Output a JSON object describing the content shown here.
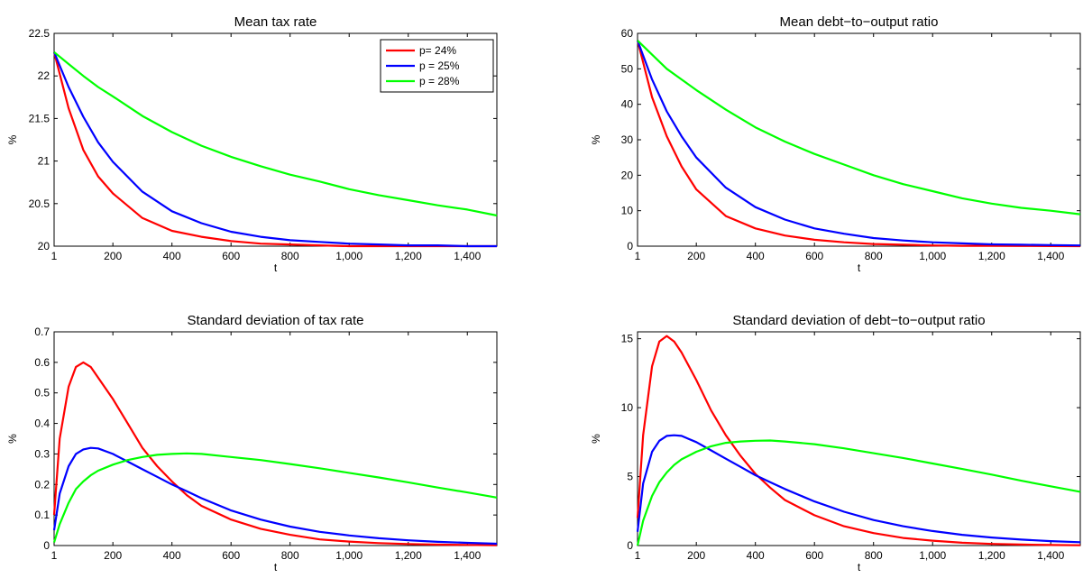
{
  "figure": {
    "background": "#ffffff",
    "series_colors": {
      "p24": "#ff0000",
      "p25": "#0000ff",
      "p28": "#00ff00"
    }
  },
  "chart_data": [
    {
      "type": "line",
      "title": "Mean tax rate",
      "xlabel": "t",
      "ylabel": "%",
      "xlim": [
        1,
        1500
      ],
      "ylim": [
        20,
        22.5
      ],
      "grid": false,
      "xticks": [
        1,
        200,
        400,
        600,
        800,
        1000,
        1200,
        1400
      ],
      "xtick_labels": [
        "1",
        "200",
        "400",
        "600",
        "800",
        "1,000",
        "1,200",
        "1,400"
      ],
      "yticks": [
        20,
        20.5,
        21,
        21.5,
        22,
        22.5
      ],
      "ytick_labels": [
        "20",
        "20.5",
        "21",
        "21.5",
        "22",
        "22.5"
      ],
      "legend": {
        "placement": "top-right",
        "entries": [
          "p=  24%",
          "p = 25%",
          "p = 28%"
        ]
      },
      "x": [
        1,
        50,
        100,
        150,
        200,
        300,
        400,
        500,
        600,
        700,
        800,
        900,
        1000,
        1100,
        1200,
        1300,
        1400,
        1500
      ],
      "series": [
        {
          "name": "p=  24%",
          "color": "#ff0000",
          "values": [
            22.28,
            21.62,
            21.13,
            20.82,
            20.62,
            20.33,
            20.18,
            20.11,
            20.06,
            20.03,
            20.02,
            20.01,
            20.0,
            20.0,
            20.0,
            20.0,
            20.0,
            20.0
          ]
        },
        {
          "name": "p = 25%",
          "color": "#0000ff",
          "values": [
            22.28,
            21.87,
            21.52,
            21.22,
            20.99,
            20.64,
            20.41,
            20.27,
            20.17,
            20.11,
            20.07,
            20.05,
            20.03,
            20.02,
            20.01,
            20.01,
            20.0,
            20.0
          ]
        },
        {
          "name": "p = 28%",
          "color": "#00ff00",
          "values": [
            22.28,
            22.14,
            22.0,
            21.87,
            21.76,
            21.53,
            21.34,
            21.18,
            21.05,
            20.94,
            20.84,
            20.76,
            20.67,
            20.6,
            20.54,
            20.48,
            20.43,
            20.36
          ]
        }
      ]
    },
    {
      "type": "line",
      "title": "Mean debt−to−output ratio",
      "xlabel": "t",
      "ylabel": "%",
      "xlim": [
        1,
        1500
      ],
      "ylim": [
        0,
        60
      ],
      "grid": false,
      "xticks": [
        1,
        200,
        400,
        600,
        800,
        1000,
        1200,
        1400
      ],
      "xtick_labels": [
        "1",
        "200",
        "400",
        "600",
        "800",
        "1,000",
        "1,200",
        "1,400"
      ],
      "yticks": [
        0,
        10,
        20,
        30,
        40,
        50,
        60
      ],
      "ytick_labels": [
        "0",
        "10",
        "20",
        "30",
        "40",
        "50",
        "60"
      ],
      "x": [
        1,
        50,
        100,
        150,
        200,
        300,
        400,
        500,
        600,
        700,
        800,
        900,
        1000,
        1100,
        1200,
        1300,
        1400,
        1500
      ],
      "series": [
        {
          "name": "p=  24%",
          "color": "#ff0000",
          "values": [
            58,
            42,
            31,
            22.5,
            16,
            8.5,
            5,
            3,
            1.8,
            1.1,
            0.6,
            0.4,
            0.2,
            0.1,
            0.1,
            0.05,
            0.02,
            0
          ]
        },
        {
          "name": "p = 25%",
          "color": "#0000ff",
          "values": [
            58,
            47,
            38,
            31,
            25,
            16.5,
            11,
            7.5,
            5,
            3.5,
            2.3,
            1.6,
            1.1,
            0.8,
            0.5,
            0.4,
            0.3,
            0.2
          ]
        },
        {
          "name": "p = 28%",
          "color": "#00ff00",
          "values": [
            58,
            54,
            50,
            47,
            44,
            38.5,
            33.5,
            29.5,
            26,
            23,
            20,
            17.5,
            15.5,
            13.5,
            12,
            10.8,
            10,
            9
          ]
        }
      ]
    },
    {
      "type": "line",
      "title": "Standard deviation of  tax rate",
      "xlabel": "t",
      "ylabel": "%",
      "xlim": [
        1,
        1500
      ],
      "ylim": [
        0,
        0.7
      ],
      "grid": false,
      "xticks": [
        1,
        200,
        400,
        600,
        800,
        1000,
        1200,
        1400
      ],
      "xtick_labels": [
        "1",
        "200",
        "400",
        "600",
        "800",
        "1,000",
        "1,200",
        "1,400"
      ],
      "yticks": [
        0,
        0.1,
        0.2,
        0.3,
        0.4,
        0.5,
        0.6,
        0.7
      ],
      "ytick_labels": [
        "0",
        "0.1",
        "0.2",
        "0.3",
        "0.4",
        "0.5",
        "0.6",
        "0.7"
      ],
      "x": [
        1,
        20,
        50,
        75,
        100,
        125,
        150,
        200,
        250,
        300,
        350,
        400,
        450,
        500,
        600,
        700,
        800,
        900,
        1000,
        1100,
        1200,
        1300,
        1400,
        1500
      ],
      "series": [
        {
          "name": "p=  24%",
          "color": "#ff0000",
          "values": [
            0.1,
            0.35,
            0.52,
            0.585,
            0.6,
            0.585,
            0.55,
            0.48,
            0.4,
            0.32,
            0.26,
            0.21,
            0.165,
            0.13,
            0.085,
            0.055,
            0.035,
            0.02,
            0.013,
            0.008,
            0.005,
            0.003,
            0.002,
            0.001
          ]
        },
        {
          "name": "p = 25%",
          "color": "#0000ff",
          "values": [
            0.05,
            0.17,
            0.26,
            0.3,
            0.315,
            0.32,
            0.318,
            0.3,
            0.275,
            0.25,
            0.225,
            0.2,
            0.178,
            0.155,
            0.115,
            0.085,
            0.062,
            0.045,
            0.033,
            0.024,
            0.017,
            0.012,
            0.009,
            0.006
          ]
        },
        {
          "name": "p = 28%",
          "color": "#00ff00",
          "values": [
            0.01,
            0.07,
            0.14,
            0.185,
            0.21,
            0.23,
            0.245,
            0.265,
            0.28,
            0.29,
            0.297,
            0.3,
            0.302,
            0.3,
            0.29,
            0.28,
            0.267,
            0.253,
            0.238,
            0.223,
            0.207,
            0.19,
            0.174,
            0.157
          ]
        }
      ]
    },
    {
      "type": "line",
      "title": "Standard deviation of  debt−to−output ratio",
      "xlabel": "t",
      "ylabel": "%",
      "xlim": [
        1,
        1500
      ],
      "ylim": [
        0,
        15.5
      ],
      "grid": false,
      "xticks": [
        1,
        200,
        400,
        600,
        800,
        1000,
        1200,
        1400
      ],
      "xtick_labels": [
        "1",
        "200",
        "400",
        "600",
        "800",
        "1,000",
        "1,200",
        "1,400"
      ],
      "yticks": [
        0,
        5,
        10,
        15
      ],
      "ytick_labels": [
        "0",
        "5",
        "10",
        "15"
      ],
      "x": [
        1,
        20,
        50,
        75,
        100,
        125,
        150,
        200,
        250,
        300,
        350,
        400,
        450,
        500,
        600,
        700,
        800,
        900,
        1000,
        1100,
        1200,
        1300,
        1400,
        1500
      ],
      "series": [
        {
          "name": "p=  24%",
          "color": "#ff0000",
          "values": [
            2,
            8,
            13,
            14.8,
            15.2,
            14.8,
            14,
            12,
            9.8,
            8,
            6.5,
            5.2,
            4.2,
            3.3,
            2.2,
            1.4,
            0.9,
            0.55,
            0.35,
            0.2,
            0.12,
            0.07,
            0.04,
            0.02
          ]
        },
        {
          "name": "p = 25%",
          "color": "#0000ff",
          "values": [
            1,
            4.5,
            6.8,
            7.6,
            7.95,
            8,
            7.95,
            7.5,
            6.9,
            6.3,
            5.7,
            5.1,
            4.6,
            4.1,
            3.2,
            2.45,
            1.85,
            1.4,
            1.05,
            0.78,
            0.58,
            0.43,
            0.32,
            0.24
          ]
        },
        {
          "name": "p = 28%",
          "color": "#00ff00",
          "values": [
            0,
            1.8,
            3.6,
            4.6,
            5.3,
            5.85,
            6.25,
            6.8,
            7.2,
            7.45,
            7.55,
            7.6,
            7.62,
            7.55,
            7.35,
            7.05,
            6.7,
            6.35,
            5.95,
            5.55,
            5.15,
            4.7,
            4.3,
            3.9
          ]
        }
      ]
    }
  ]
}
